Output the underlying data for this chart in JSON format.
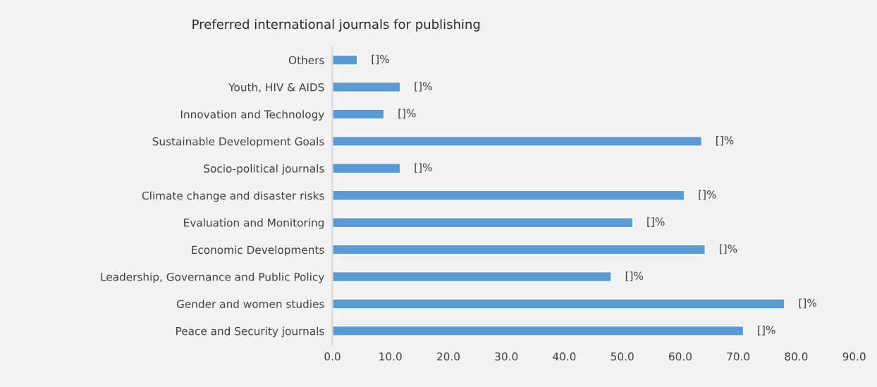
{
  "chart_data": {
    "type": "bar",
    "orientation": "horizontal",
    "title": "Preferred international journals for publishing",
    "categories": [
      "Others",
      "Youth, HIV & AIDS",
      "Innovation and Technology",
      "Sustainable Development Goals",
      "Socio-political journals",
      "Climate change and disaster risks",
      "Evaluation and Monitoring",
      "Economic Developments",
      "Leadership, Governance and Public Policy",
      "Gender and women studies",
      "Peace and Security journals"
    ],
    "values": [
      4.3,
      11.7,
      8.9,
      63.7,
      11.7,
      60.7,
      51.8,
      64.3,
      48.1,
      78.0,
      70.9
    ],
    "value_labels": [
      "[]%",
      "[]%",
      "[]%",
      "[]%",
      "[]%",
      "[]%",
      "[]%",
      "[]%",
      "[]%",
      "[]%",
      "[]%"
    ],
    "color": "#5b9bd5",
    "xlim": [
      0,
      90
    ],
    "xticks": [
      {
        "value": 0,
        "label": "0.0"
      },
      {
        "value": 10,
        "label": "10.0"
      },
      {
        "value": 20,
        "label": "20.0"
      },
      {
        "value": 30,
        "label": "30.0"
      },
      {
        "value": 40,
        "label": "40.0"
      },
      {
        "value": 50,
        "label": "50.0"
      },
      {
        "value": 60,
        "label": "60.0"
      },
      {
        "value": 70,
        "label": "70.0"
      },
      {
        "value": 80,
        "label": "80.0"
      },
      {
        "value": 90,
        "label": "90.0"
      }
    ],
    "grid": false,
    "legend": false
  }
}
